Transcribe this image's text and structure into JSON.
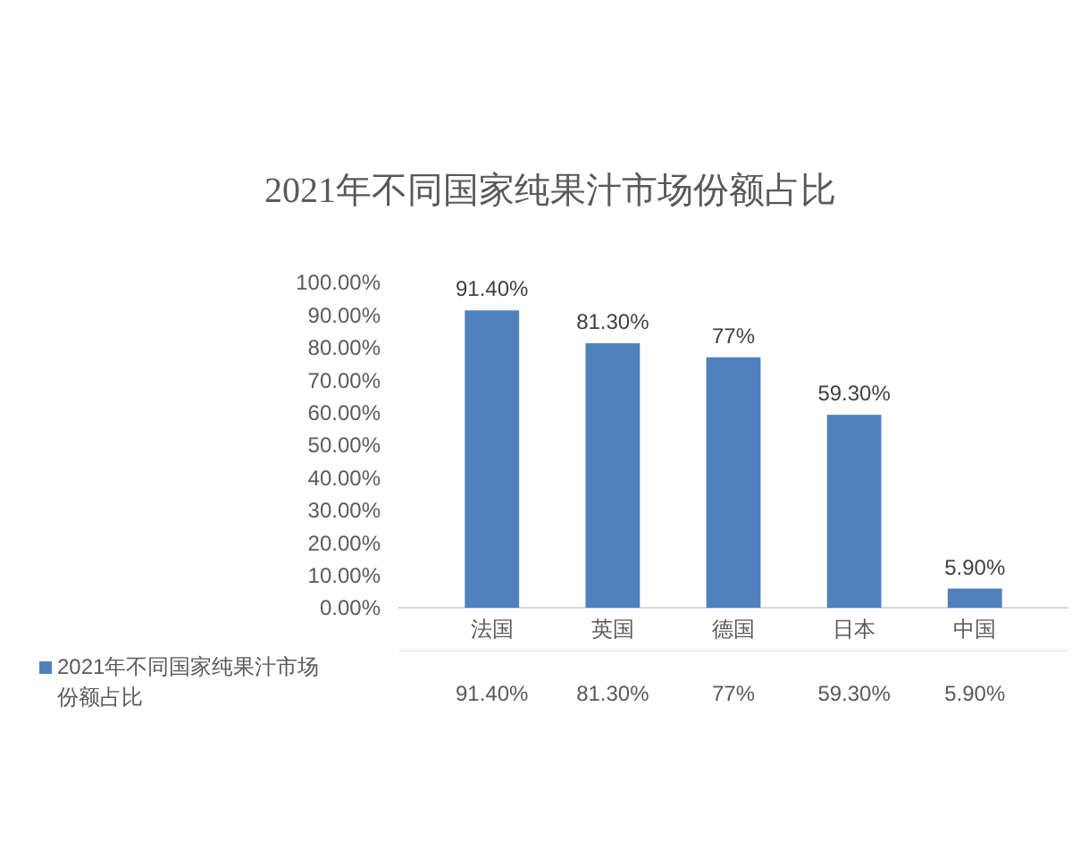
{
  "chart_data": {
    "type": "bar",
    "title": "2021年不同国家纯果汁市场份额占比",
    "categories": [
      "法国",
      "英国",
      "德国",
      "日本",
      "中国"
    ],
    "series": [
      {
        "name": "2021年不同国家纯果汁市场份额占比",
        "color": "#4f81bd",
        "values": [
          91.4,
          81.3,
          77,
          59.3,
          5.9
        ],
        "value_labels": [
          "91.40%",
          "81.30%",
          "77%",
          "59.30%",
          "5.90%"
        ]
      }
    ],
    "ylim": [
      0,
      100
    ],
    "yticks": [
      {
        "value": 0,
        "label": "0.00%"
      },
      {
        "value": 10,
        "label": "10.00%"
      },
      {
        "value": 20,
        "label": "20.00%"
      },
      {
        "value": 30,
        "label": "30.00%"
      },
      {
        "value": 40,
        "label": "40.00%"
      },
      {
        "value": 50,
        "label": "50.00%"
      },
      {
        "value": 60,
        "label": "60.00%"
      },
      {
        "value": 70,
        "label": "70.00%"
      },
      {
        "value": 80,
        "label": "80.00%"
      },
      {
        "value": 90,
        "label": "90.00%"
      },
      {
        "value": 100,
        "label": "100.00%"
      }
    ],
    "grid": false,
    "legend": "bottom"
  }
}
